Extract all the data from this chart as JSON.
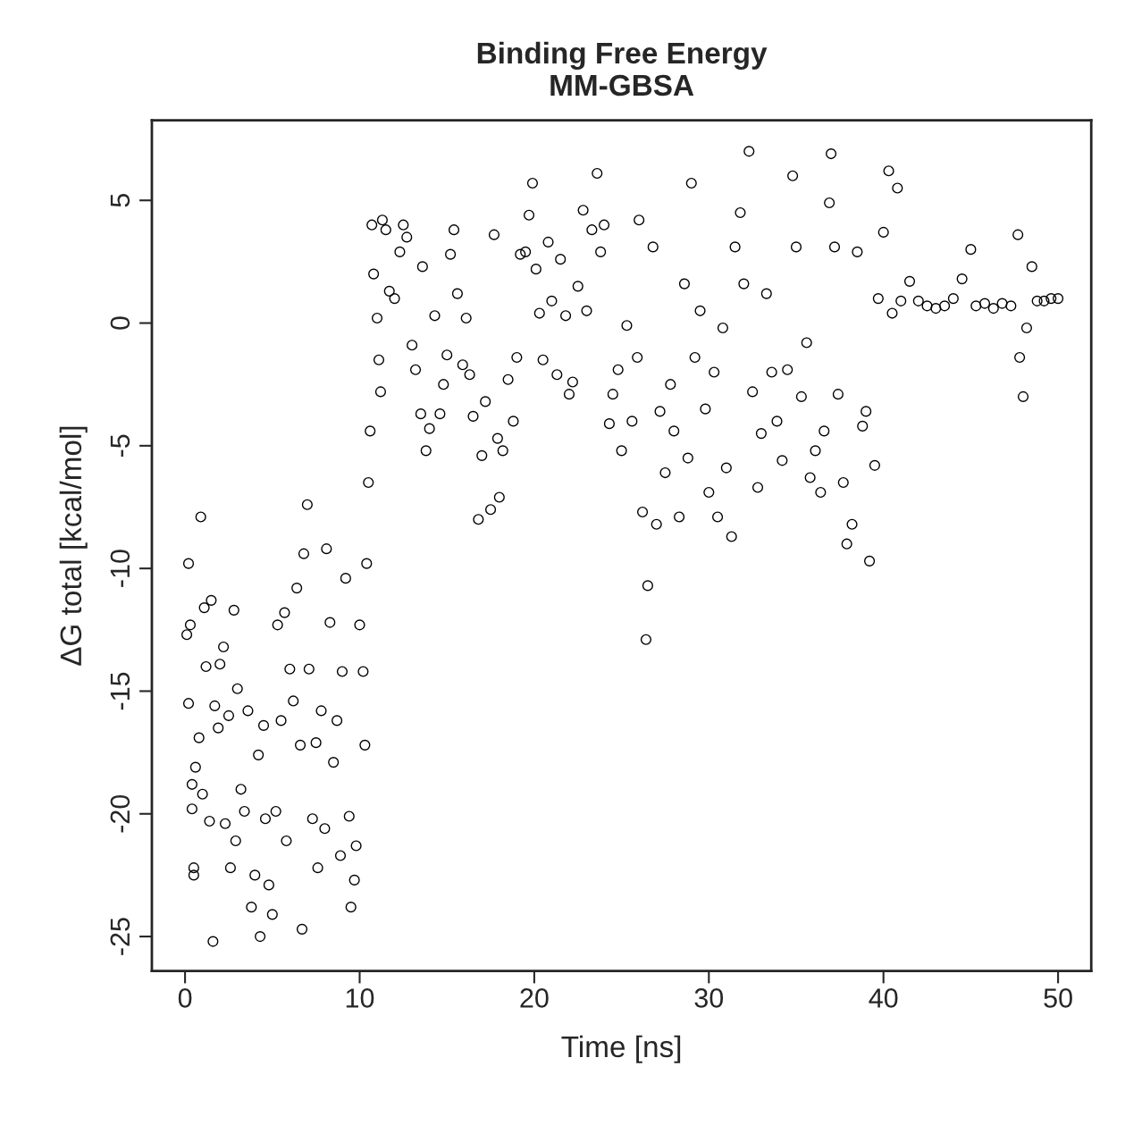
{
  "chart_data": {
    "type": "scatter",
    "title": "Binding Free Energy\nMM-GBSA",
    "xlabel": "Time [ns]",
    "ylabel": "ΔG total [kcal/mol]",
    "xlim": [
      -1.9,
      51.9
    ],
    "ylim": [
      -26.4,
      8.26
    ],
    "xticks": [
      0,
      10,
      20,
      30,
      40,
      50
    ],
    "yticks": [
      5,
      0,
      -5,
      -10,
      -15,
      -20,
      -25
    ],
    "grid": false,
    "legend": false,
    "marker": "circle",
    "series": [
      {
        "color": "#000000",
        "x": [
          0.1,
          0.2,
          0.2,
          0.3,
          0.4,
          0.4,
          0.5,
          0.5,
          0.6,
          0.8,
          0.9,
          1.0,
          1.1,
          1.2,
          1.4,
          1.5,
          1.6,
          1.7,
          1.9,
          2.0,
          2.2,
          2.3,
          2.5,
          2.6,
          2.8,
          2.9,
          3.0,
          3.2,
          3.4,
          3.6,
          3.8,
          4.0,
          4.2,
          4.3,
          4.5,
          4.6,
          4.8,
          5.0,
          5.2,
          5.3,
          5.5,
          5.7,
          5.8,
          6.0,
          6.2,
          6.4,
          6.6,
          6.7,
          6.8,
          7.0,
          7.1,
          7.3,
          7.5,
          7.6,
          7.8,
          8.0,
          8.1,
          8.3,
          8.5,
          8.7,
          8.9,
          9.0,
          9.2,
          9.4,
          9.5,
          9.7,
          9.8,
          10.0,
          10.2,
          10.3,
          10.4,
          10.5,
          10.6,
          10.7,
          10.8,
          11.0,
          11.1,
          11.2,
          11.3,
          11.5,
          11.7,
          12.0,
          12.3,
          12.5,
          12.7,
          13.0,
          13.2,
          13.5,
          13.6,
          13.8,
          14.0,
          14.3,
          14.6,
          14.8,
          15.0,
          15.2,
          15.4,
          15.6,
          15.9,
          16.1,
          16.3,
          16.5,
          16.8,
          17.0,
          17.2,
          17.5,
          17.7,
          17.9,
          18.0,
          18.2,
          18.5,
          18.8,
          19.0,
          19.2,
          19.5,
          19.7,
          19.9,
          20.1,
          20.3,
          20.5,
          20.8,
          21.0,
          21.3,
          21.5,
          21.8,
          22.0,
          22.2,
          22.5,
          22.8,
          23.0,
          23.3,
          23.6,
          23.8,
          24.0,
          24.3,
          24.5,
          24.8,
          25.0,
          25.3,
          25.6,
          25.9,
          26.0,
          26.2,
          26.4,
          26.5,
          26.8,
          27.0,
          27.2,
          27.5,
          27.8,
          28.0,
          28.3,
          28.6,
          28.8,
          29.0,
          29.2,
          29.5,
          29.8,
          30.0,
          30.3,
          30.5,
          30.8,
          31.0,
          31.3,
          31.5,
          31.8,
          32.0,
          32.3,
          32.5,
          32.8,
          33.0,
          33.3,
          33.6,
          33.9,
          34.2,
          34.5,
          34.8,
          35.0,
          35.3,
          35.6,
          35.8,
          36.1,
          36.4,
          36.6,
          36.9,
          37.0,
          37.2,
          37.4,
          37.7,
          37.9,
          38.2,
          38.5,
          38.8,
          39.0,
          39.2,
          39.5,
          39.7,
          40.0,
          40.3,
          40.5,
          40.8,
          41.0,
          41.5,
          42.0,
          42.5,
          43.0,
          43.5,
          44.0,
          44.5,
          45.0,
          45.3,
          45.8,
          46.3,
          46.8,
          47.3,
          47.7,
          47.8,
          48.0,
          48.2,
          48.5,
          48.8,
          49.2,
          49.6,
          50.0
        ],
        "values": [
          -12.7,
          -9.8,
          -15.5,
          -12.3,
          -18.8,
          -19.8,
          -22.2,
          -22.5,
          -18.1,
          -16.9,
          -7.9,
          -19.2,
          -11.6,
          -14.0,
          -20.3,
          -11.3,
          -25.2,
          -15.6,
          -16.5,
          -13.9,
          -13.2,
          -20.4,
          -16.0,
          -22.2,
          -11.7,
          -21.1,
          -14.9,
          -19.0,
          -19.9,
          -15.8,
          -23.8,
          -22.5,
          -17.6,
          -25.0,
          -16.4,
          -20.2,
          -22.9,
          -24.1,
          -19.9,
          -12.3,
          -16.2,
          -11.8,
          -21.1,
          -14.1,
          -15.4,
          -10.8,
          -17.2,
          -24.7,
          -9.4,
          -7.4,
          -14.1,
          -20.2,
          -17.1,
          -22.2,
          -15.8,
          -20.6,
          -9.2,
          -12.2,
          -17.9,
          -16.2,
          -21.7,
          -14.2,
          -10.4,
          -20.1,
          -23.8,
          -22.7,
          -21.3,
          -12.3,
          -14.2,
          -17.2,
          -9.8,
          -6.5,
          -4.4,
          4.0,
          2.0,
          0.2,
          -1.5,
          -2.8,
          4.2,
          3.8,
          1.3,
          1.0,
          2.9,
          4.0,
          3.5,
          -0.9,
          -1.9,
          -3.7,
          2.3,
          -5.2,
          -4.3,
          0.3,
          -3.7,
          -2.5,
          -1.3,
          2.8,
          3.8,
          1.2,
          -1.7,
          0.2,
          -2.1,
          -3.8,
          -8.0,
          -5.4,
          -3.2,
          -7.6,
          3.6,
          -4.7,
          -7.1,
          -5.2,
          -2.3,
          -4.0,
          -1.4,
          2.8,
          2.9,
          4.4,
          5.7,
          2.2,
          0.4,
          -1.5,
          3.3,
          0.9,
          -2.1,
          2.6,
          0.3,
          -2.9,
          -2.4,
          1.5,
          4.6,
          0.5,
          3.8,
          6.1,
          2.9,
          4.0,
          -4.1,
          -2.9,
          -1.9,
          -5.2,
          -0.1,
          -4.0,
          -1.4,
          4.2,
          -7.7,
          -12.9,
          -10.7,
          3.1,
          -8.2,
          -3.6,
          -6.1,
          -2.5,
          -4.4,
          -7.9,
          1.6,
          -5.5,
          5.7,
          -1.4,
          0.5,
          -3.5,
          -6.9,
          -2.0,
          -7.9,
          -0.2,
          -5.9,
          -8.7,
          3.1,
          4.5,
          1.6,
          7.0,
          -2.8,
          -6.7,
          -4.5,
          1.2,
          -2.0,
          -4.0,
          -5.6,
          -1.9,
          6.0,
          3.1,
          -3.0,
          -0.8,
          -6.3,
          -5.2,
          -6.9,
          -4.4,
          4.9,
          6.9,
          3.1,
          -2.9,
          -6.5,
          -9.0,
          -8.2,
          2.9,
          -4.2,
          -3.6,
          -9.7,
          -5.8,
          1.0,
          3.7,
          6.2,
          0.4,
          5.5,
          0.9,
          1.7,
          0.9,
          0.7,
          0.6,
          0.7,
          1.0,
          1.8,
          3.0,
          0.7,
          0.8,
          0.6,
          0.8,
          0.7,
          3.6,
          -1.4,
          -3.0,
          -0.2,
          2.3,
          0.9,
          0.9,
          1.0,
          1.0
        ]
      }
    ]
  }
}
